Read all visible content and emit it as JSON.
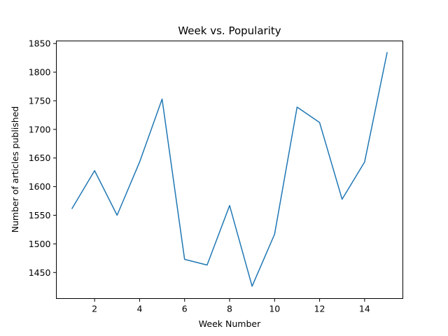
{
  "chart_data": {
    "type": "line",
    "title": "Week vs. Popularity",
    "xlabel": "Week Number",
    "ylabel": "Number of articles published",
    "xlim": [
      0.3,
      15.7
    ],
    "ylim": [
      1404.5,
      1854.5
    ],
    "x_ticks": [
      2,
      4,
      6,
      8,
      10,
      12,
      14
    ],
    "y_ticks": [
      1450,
      1500,
      1550,
      1600,
      1650,
      1700,
      1750,
      1800,
      1850
    ],
    "grid": false,
    "colors": {
      "line": "#1f77b4"
    },
    "series": [
      {
        "x": [
          1,
          2,
          3,
          4,
          5,
          6,
          7,
          8,
          9,
          10,
          11,
          12,
          13,
          14,
          15
        ],
        "values": [
          1562,
          1628,
          1550,
          1643,
          1753,
          1473,
          1463,
          1567,
          1426,
          1517,
          1739,
          1712,
          1578,
          1643,
          1834
        ]
      }
    ]
  }
}
